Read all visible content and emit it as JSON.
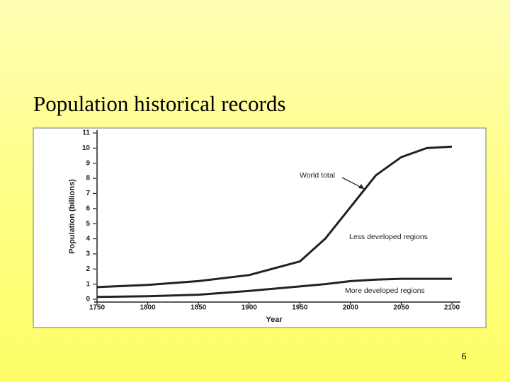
{
  "chart_data": {
    "type": "line",
    "title": "Population historical records",
    "x_label": "Year",
    "y_label": "Population (billions)",
    "x": [
      1750,
      1800,
      1850,
      1900,
      1950,
      1975,
      2000,
      2025,
      2050,
      2075,
      2100
    ],
    "series": [
      {
        "name": "World total",
        "color": "#222222",
        "values": [
          0.8,
          0.95,
          1.2,
          1.6,
          2.5,
          4.0,
          6.1,
          8.2,
          9.4,
          10.0,
          10.1
        ]
      },
      {
        "name": "More developed regions",
        "color": "#222222",
        "values": [
          0.15,
          0.2,
          0.3,
          0.55,
          0.85,
          1.0,
          1.2,
          1.3,
          1.35,
          1.35,
          1.35
        ]
      }
    ],
    "annotations": [
      "Less developed regions"
    ],
    "xlim": [
      1750,
      2100
    ],
    "xticks": [
      1750,
      1800,
      1850,
      1900,
      1950,
      2000,
      2050,
      2100
    ],
    "ylim": [
      0,
      11
    ],
    "yticks": [
      0,
      1,
      2,
      3,
      4,
      5,
      6,
      7,
      8,
      9,
      10,
      11
    ]
  },
  "page_number": "6"
}
